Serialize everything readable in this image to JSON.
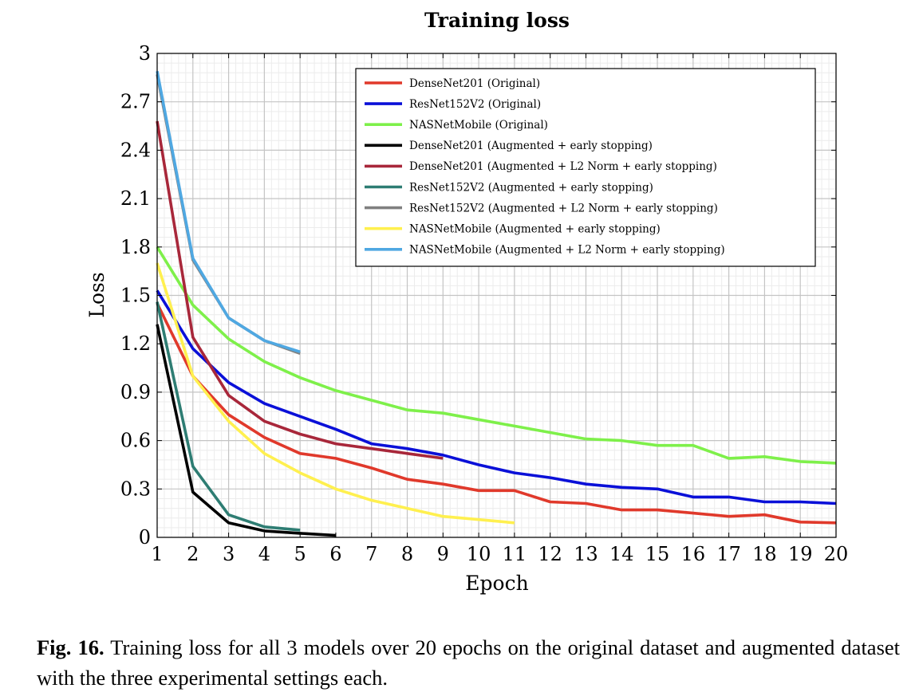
{
  "chart_data": {
    "type": "line",
    "title": "Training loss",
    "xlabel": "Epoch",
    "ylabel": "Loss",
    "xlim": [
      1,
      20
    ],
    "ylim": [
      0,
      3
    ],
    "xticks": [
      1,
      2,
      3,
      4,
      5,
      6,
      7,
      8,
      9,
      10,
      11,
      12,
      13,
      14,
      15,
      16,
      17,
      18,
      19,
      20
    ],
    "yticks": [
      "0",
      "0.3",
      "0.6",
      "0.9",
      "1.2",
      "1.5",
      "1.8",
      "2.1",
      "2.4",
      "2.7",
      "3"
    ],
    "ytick_values": [
      0,
      0.3,
      0.6,
      0.9,
      1.2,
      1.5,
      1.8,
      2.1,
      2.4,
      2.7,
      3
    ],
    "grid": true,
    "minor_grid": true,
    "legend_position": "top-right",
    "series": [
      {
        "name": "DenseNet201 (Original)",
        "color": "#e0392b",
        "x": [
          1,
          2,
          3,
          4,
          5,
          6,
          7,
          8,
          9,
          10,
          11,
          12,
          13,
          14,
          15,
          16,
          17,
          18,
          19,
          20
        ],
        "y": [
          1.45,
          1.0,
          0.76,
          0.62,
          0.52,
          0.49,
          0.43,
          0.36,
          0.33,
          0.29,
          0.29,
          0.22,
          0.21,
          0.17,
          0.17,
          0.15,
          0.13,
          0.14,
          0.095,
          0.09
        ]
      },
      {
        "name": "ResNet152V2 (Original)",
        "color": "#0a10d8",
        "x": [
          1,
          2,
          3,
          4,
          5,
          6,
          7,
          8,
          9,
          10,
          11,
          12,
          13,
          14,
          15,
          16,
          17,
          18,
          19,
          20
        ],
        "y": [
          1.53,
          1.17,
          0.96,
          0.83,
          0.75,
          0.67,
          0.58,
          0.55,
          0.51,
          0.45,
          0.4,
          0.37,
          0.33,
          0.31,
          0.3,
          0.25,
          0.25,
          0.22,
          0.22,
          0.21
        ]
      },
      {
        "name": "NASNetMobile (Original)",
        "color": "#7ef04a",
        "x": [
          1,
          2,
          3,
          4,
          5,
          6,
          7,
          8,
          9,
          10,
          11,
          12,
          13,
          14,
          15,
          16,
          17,
          18,
          19,
          20
        ],
        "y": [
          1.8,
          1.44,
          1.23,
          1.09,
          0.99,
          0.91,
          0.85,
          0.79,
          0.77,
          0.73,
          0.69,
          0.65,
          0.61,
          0.6,
          0.57,
          0.57,
          0.49,
          0.5,
          0.47,
          0.46
        ]
      },
      {
        "name": "DenseNet201 (Augmented + early stopping)",
        "color": "#000000",
        "x": [
          1,
          2,
          3,
          4,
          5,
          6
        ],
        "y": [
          1.32,
          0.28,
          0.09,
          0.04,
          0.025,
          0.012
        ]
      },
      {
        "name": "DenseNet201 (Augmented + L2 Norm + early stopping)",
        "color": "#a8273a",
        "x": [
          1,
          2,
          3,
          4,
          5,
          6,
          7,
          8,
          9
        ],
        "y": [
          2.58,
          1.24,
          0.88,
          0.72,
          0.64,
          0.58,
          0.55,
          0.52,
          0.49
        ]
      },
      {
        "name": "ResNet152V2 (Augmented + early stopping)",
        "color": "#2e7d73",
        "x": [
          1,
          2,
          3,
          4,
          5
        ],
        "y": [
          1.46,
          0.44,
          0.14,
          0.065,
          0.045
        ]
      },
      {
        "name": "ResNet152V2 (Augmented + L2 Norm + early stopping)",
        "color": "#808080",
        "x": [
          1,
          2,
          3,
          4,
          5
        ],
        "y": [
          2.87,
          1.72,
          1.36,
          1.22,
          1.14
        ]
      },
      {
        "name": "NASNetMobile (Augmented + early stopping)",
        "color": "#fff04f",
        "x": [
          1,
          2,
          3,
          4,
          5,
          6,
          7,
          8,
          9,
          10,
          11
        ],
        "y": [
          1.7,
          1.0,
          0.72,
          0.52,
          0.4,
          0.3,
          0.23,
          0.18,
          0.13,
          0.11,
          0.09
        ]
      },
      {
        "name": "NASNetMobile (Augmented + L2 Norm + early stopping)",
        "color": "#4fa8e2",
        "x": [
          1,
          2,
          3,
          4,
          5
        ],
        "y": [
          2.89,
          1.73,
          1.36,
          1.22,
          1.15
        ]
      }
    ]
  },
  "caption": {
    "label": "Fig. 16.",
    "text": " Training loss for all 3 models over 20 epochs on the original dataset and augmented dataset with the three experimental settings each."
  }
}
